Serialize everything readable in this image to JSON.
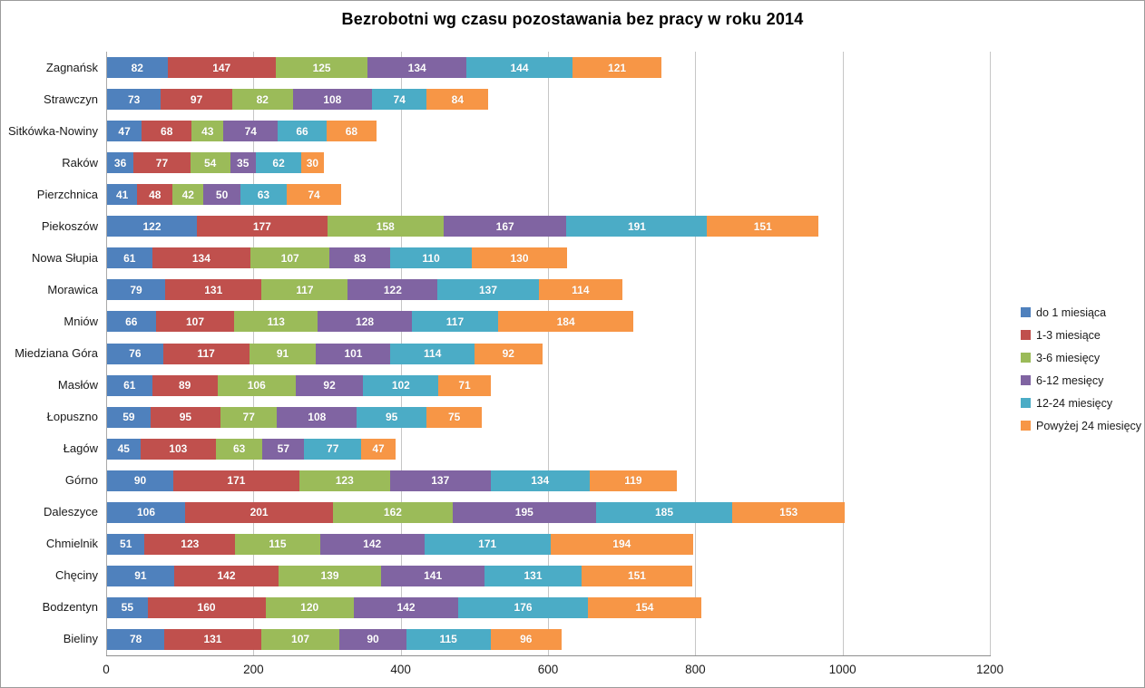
{
  "chart_data": {
    "type": "bar",
    "orientation": "horizontal-stacked",
    "title": "Bezrobotni wg czasu pozostawania bez pracy w roku 2014",
    "xlabel": "",
    "ylabel": "",
    "xlim": [
      0,
      1200
    ],
    "xticks": [
      0,
      200,
      400,
      600,
      800,
      1000,
      1200
    ],
    "grid": "vertical",
    "legend_position": "right",
    "value_labels": "inside-white-bold",
    "categories": [
      "Zagnańsk",
      "Strawczyn",
      "Sitkówka-Nowiny",
      "Raków",
      "Pierzchnica",
      "Piekoszów",
      "Nowa Słupia",
      "Morawica",
      "Mniów",
      "Miedziana Góra",
      "Masłów",
      "Łopuszno",
      "Łagów",
      "Górno",
      "Daleszyce",
      "Chmielnik",
      "Chęciny",
      "Bodzentyn",
      "Bieliny"
    ],
    "series": [
      {
        "name": "do 1 miesiąca",
        "color": "#4F81BD",
        "values": [
          82,
          73,
          47,
          36,
          41,
          122,
          61,
          79,
          66,
          76,
          61,
          59,
          45,
          90,
          106,
          51,
          91,
          55,
          78
        ]
      },
      {
        "name": "1-3 miesiące",
        "color": "#C0504D",
        "values": [
          147,
          97,
          68,
          77,
          48,
          177,
          134,
          131,
          107,
          117,
          89,
          95,
          103,
          171,
          201,
          123,
          142,
          160,
          131
        ]
      },
      {
        "name": "3-6 miesięcy",
        "color": "#9BBB59",
        "values": [
          125,
          82,
          43,
          54,
          42,
          158,
          107,
          117,
          113,
          91,
          106,
          77,
          63,
          123,
          162,
          115,
          139,
          120,
          107
        ]
      },
      {
        "name": "6-12 mesięcy",
        "color": "#8064A2",
        "values": [
          134,
          108,
          74,
          35,
          50,
          167,
          83,
          122,
          128,
          101,
          92,
          108,
          57,
          137,
          195,
          142,
          141,
          142,
          90
        ]
      },
      {
        "name": "12-24 miesięcy",
        "color": "#4BACC6",
        "values": [
          144,
          74,
          66,
          62,
          63,
          191,
          110,
          137,
          117,
          114,
          102,
          95,
          77,
          134,
          185,
          171,
          131,
          176,
          115
        ]
      },
      {
        "name": "Powyżej 24 miesięcy",
        "color": "#F79646",
        "values": [
          121,
          84,
          68,
          30,
          74,
          151,
          130,
          114,
          184,
          92,
          71,
          75,
          47,
          119,
          153,
          194,
          151,
          154,
          96
        ]
      }
    ]
  }
}
